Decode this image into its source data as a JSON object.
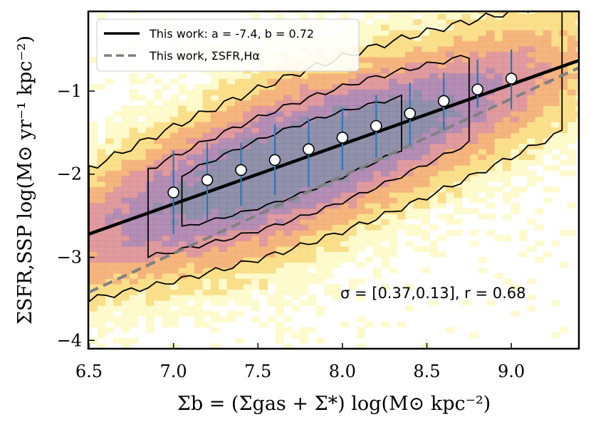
{
  "chart_data": {
    "type": "scatter",
    "title": "",
    "xlabel": "Σb = (Σgas + Σ*) log(M⊙ kpc⁻²)",
    "ylabel": "ΣSFR,SSP log(M⊙ yr⁻¹ kpc⁻²)",
    "xlim": [
      6.5,
      9.4
    ],
    "ylim": [
      -4.1,
      -0.05
    ],
    "x_ticks": [
      6.5,
      7.0,
      7.5,
      8.0,
      8.5,
      9.0
    ],
    "x_tick_labels": [
      "6.5",
      "7.0",
      "7.5",
      "8.0",
      "8.5",
      "9.0"
    ],
    "y_ticks": [
      -1,
      -2,
      -3,
      -4
    ],
    "y_tick_labels": [
      "−1",
      "−2",
      "−3",
      "−4"
    ],
    "grid": false,
    "legend_position": "top-left",
    "legend": [
      {
        "label": "This work: a = -7.4, b = 0.72",
        "style": "solid",
        "color": "#000000"
      },
      {
        "label": "This work, ΣSFR,Hα",
        "style": "dashed",
        "color": "#808080"
      }
    ],
    "annotation": "σ = [0.37,0.13], r = 0.68",
    "fit_line": {
      "a": -7.4,
      "b": 0.72
    },
    "halpha_line": {
      "points": [
        [
          6.5,
          -3.42
        ],
        [
          9.4,
          -0.72
        ]
      ]
    },
    "binned_points": {
      "x": [
        7.0,
        7.2,
        7.4,
        7.6,
        7.8,
        8.0,
        8.2,
        8.4,
        8.6,
        8.8,
        9.0
      ],
      "y": [
        -2.22,
        -2.07,
        -1.95,
        -1.83,
        -1.7,
        -1.56,
        -1.42,
        -1.27,
        -1.12,
        -0.98,
        -0.85
      ],
      "y_low": [
        -2.72,
        -2.55,
        -2.38,
        -2.25,
        -2.15,
        -1.95,
        -1.8,
        -1.65,
        -1.47,
        -1.2,
        -1.22
      ],
      "y_high": [
        -1.72,
        -1.62,
        -1.62,
        -1.4,
        -1.33,
        -1.2,
        -1.05,
        -0.9,
        -0.78,
        -0.62,
        -0.5
      ]
    },
    "density_colors": [
      "#fdf9c4",
      "#f9d978",
      "#f3a868",
      "#d98a8e",
      "#a77aa8",
      "#7e7e9e"
    ],
    "errorbar_color": "#2a78b5"
  }
}
